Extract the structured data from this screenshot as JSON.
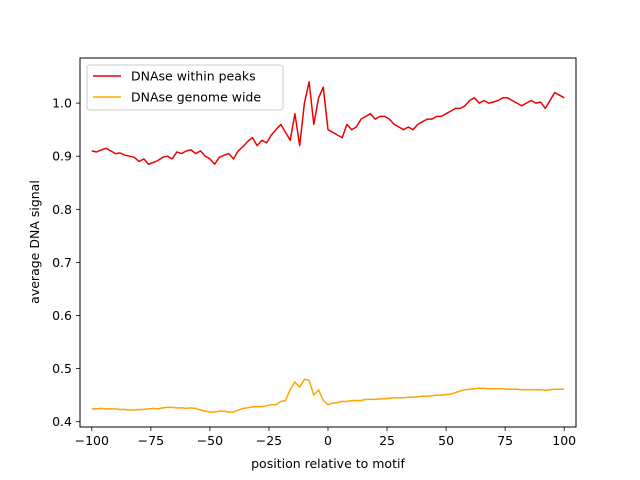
{
  "chart_data": {
    "type": "line",
    "title": "",
    "xlabel": "position relative to motif",
    "ylabel": "average DNA signal",
    "xlim": [
      -105,
      105
    ],
    "ylim": [
      0.39,
      1.085
    ],
    "xticks": [
      -100,
      -75,
      -50,
      -25,
      0,
      25,
      50,
      75,
      100
    ],
    "xtick_labels": [
      "−100",
      "−75",
      "−50",
      "−25",
      "0",
      "25",
      "50",
      "75",
      "100"
    ],
    "yticks": [
      0.4,
      0.5,
      0.6,
      0.7,
      0.8,
      0.9,
      1.0
    ],
    "ytick_labels": [
      "0.4",
      "0.5",
      "0.6",
      "0.7",
      "0.8",
      "0.9",
      "1.0"
    ],
    "grid": false,
    "legend_position": "top-left",
    "series": [
      {
        "name": "DNAse within peaks",
        "color": "#ee0000",
        "x": [
          -100,
          -98,
          -96,
          -94,
          -92,
          -90,
          -88,
          -86,
          -84,
          -82,
          -80,
          -78,
          -76,
          -74,
          -72,
          -70,
          -68,
          -66,
          -64,
          -62,
          -60,
          -58,
          -56,
          -54,
          -52,
          -50,
          -48,
          -46,
          -44,
          -42,
          -40,
          -38,
          -36,
          -34,
          -32,
          -30,
          -28,
          -26,
          -24,
          -22,
          -20,
          -18,
          -16,
          -14,
          -12,
          -10,
          -8,
          -6,
          -4,
          -2,
          0,
          2,
          4,
          6,
          8,
          10,
          12,
          14,
          16,
          18,
          20,
          22,
          24,
          26,
          28,
          30,
          32,
          34,
          36,
          38,
          40,
          42,
          44,
          46,
          48,
          50,
          52,
          54,
          56,
          58,
          60,
          62,
          64,
          66,
          68,
          70,
          72,
          74,
          76,
          78,
          80,
          82,
          84,
          86,
          88,
          90,
          92,
          94,
          96,
          98,
          100
        ],
        "values": [
          0.91,
          0.908,
          0.912,
          0.915,
          0.91,
          0.905,
          0.906,
          0.902,
          0.9,
          0.898,
          0.89,
          0.895,
          0.885,
          0.888,
          0.892,
          0.898,
          0.9,
          0.895,
          0.908,
          0.905,
          0.91,
          0.912,
          0.905,
          0.91,
          0.9,
          0.895,
          0.885,
          0.898,
          0.902,
          0.905,
          0.895,
          0.91,
          0.918,
          0.928,
          0.935,
          0.92,
          0.93,
          0.925,
          0.94,
          0.95,
          0.96,
          0.945,
          0.93,
          0.98,
          0.92,
          1.0,
          1.04,
          0.96,
          1.01,
          1.03,
          0.95,
          0.945,
          0.94,
          0.935,
          0.96,
          0.95,
          0.955,
          0.97,
          0.975,
          0.98,
          0.97,
          0.975,
          0.975,
          0.97,
          0.96,
          0.955,
          0.95,
          0.955,
          0.95,
          0.96,
          0.965,
          0.97,
          0.97,
          0.975,
          0.975,
          0.98,
          0.985,
          0.99,
          0.99,
          0.995,
          1.005,
          1.01,
          1.0,
          1.005,
          1.0,
          1.002,
          1.005,
          1.01,
          1.01,
          1.005,
          1.0,
          0.995,
          1.0,
          1.005,
          1.0,
          1.002,
          0.99,
          1.005,
          1.02,
          1.015,
          1.01
        ]
      },
      {
        "name": "DNAse genome wide",
        "color": "#ffa500",
        "x": [
          -100,
          -98,
          -96,
          -94,
          -92,
          -90,
          -88,
          -86,
          -84,
          -82,
          -80,
          -78,
          -76,
          -74,
          -72,
          -70,
          -68,
          -66,
          -64,
          -62,
          -60,
          -58,
          -56,
          -54,
          -52,
          -50,
          -48,
          -46,
          -44,
          -42,
          -40,
          -38,
          -36,
          -34,
          -32,
          -30,
          -28,
          -26,
          -24,
          -22,
          -20,
          -18,
          -16,
          -14,
          -12,
          -10,
          -8,
          -6,
          -4,
          -2,
          0,
          2,
          4,
          6,
          8,
          10,
          12,
          14,
          16,
          18,
          20,
          22,
          24,
          26,
          28,
          30,
          32,
          34,
          36,
          38,
          40,
          42,
          44,
          46,
          48,
          50,
          52,
          54,
          56,
          58,
          60,
          62,
          64,
          66,
          68,
          70,
          72,
          74,
          76,
          78,
          80,
          82,
          84,
          86,
          88,
          90,
          92,
          94,
          96,
          98,
          100
        ],
        "values": [
          0.424,
          0.424,
          0.425,
          0.424,
          0.424,
          0.424,
          0.423,
          0.423,
          0.422,
          0.422,
          0.423,
          0.423,
          0.424,
          0.425,
          0.424,
          0.426,
          0.427,
          0.427,
          0.426,
          0.426,
          0.425,
          0.426,
          0.425,
          0.422,
          0.42,
          0.418,
          0.418,
          0.42,
          0.42,
          0.418,
          0.418,
          0.422,
          0.425,
          0.426,
          0.428,
          0.428,
          0.428,
          0.43,
          0.432,
          0.432,
          0.438,
          0.44,
          0.46,
          0.475,
          0.465,
          0.48,
          0.478,
          0.45,
          0.46,
          0.44,
          0.432,
          0.435,
          0.436,
          0.438,
          0.438,
          0.44,
          0.44,
          0.44,
          0.442,
          0.442,
          0.442,
          0.443,
          0.443,
          0.444,
          0.445,
          0.445,
          0.445,
          0.446,
          0.446,
          0.447,
          0.448,
          0.448,
          0.449,
          0.45,
          0.45,
          0.451,
          0.452,
          0.455,
          0.458,
          0.46,
          0.461,
          0.462,
          0.463,
          0.463,
          0.462,
          0.462,
          0.462,
          0.462,
          0.461,
          0.461,
          0.461,
          0.46,
          0.46,
          0.46,
          0.46,
          0.46,
          0.459,
          0.46,
          0.461,
          0.461,
          0.461
        ]
      }
    ]
  }
}
